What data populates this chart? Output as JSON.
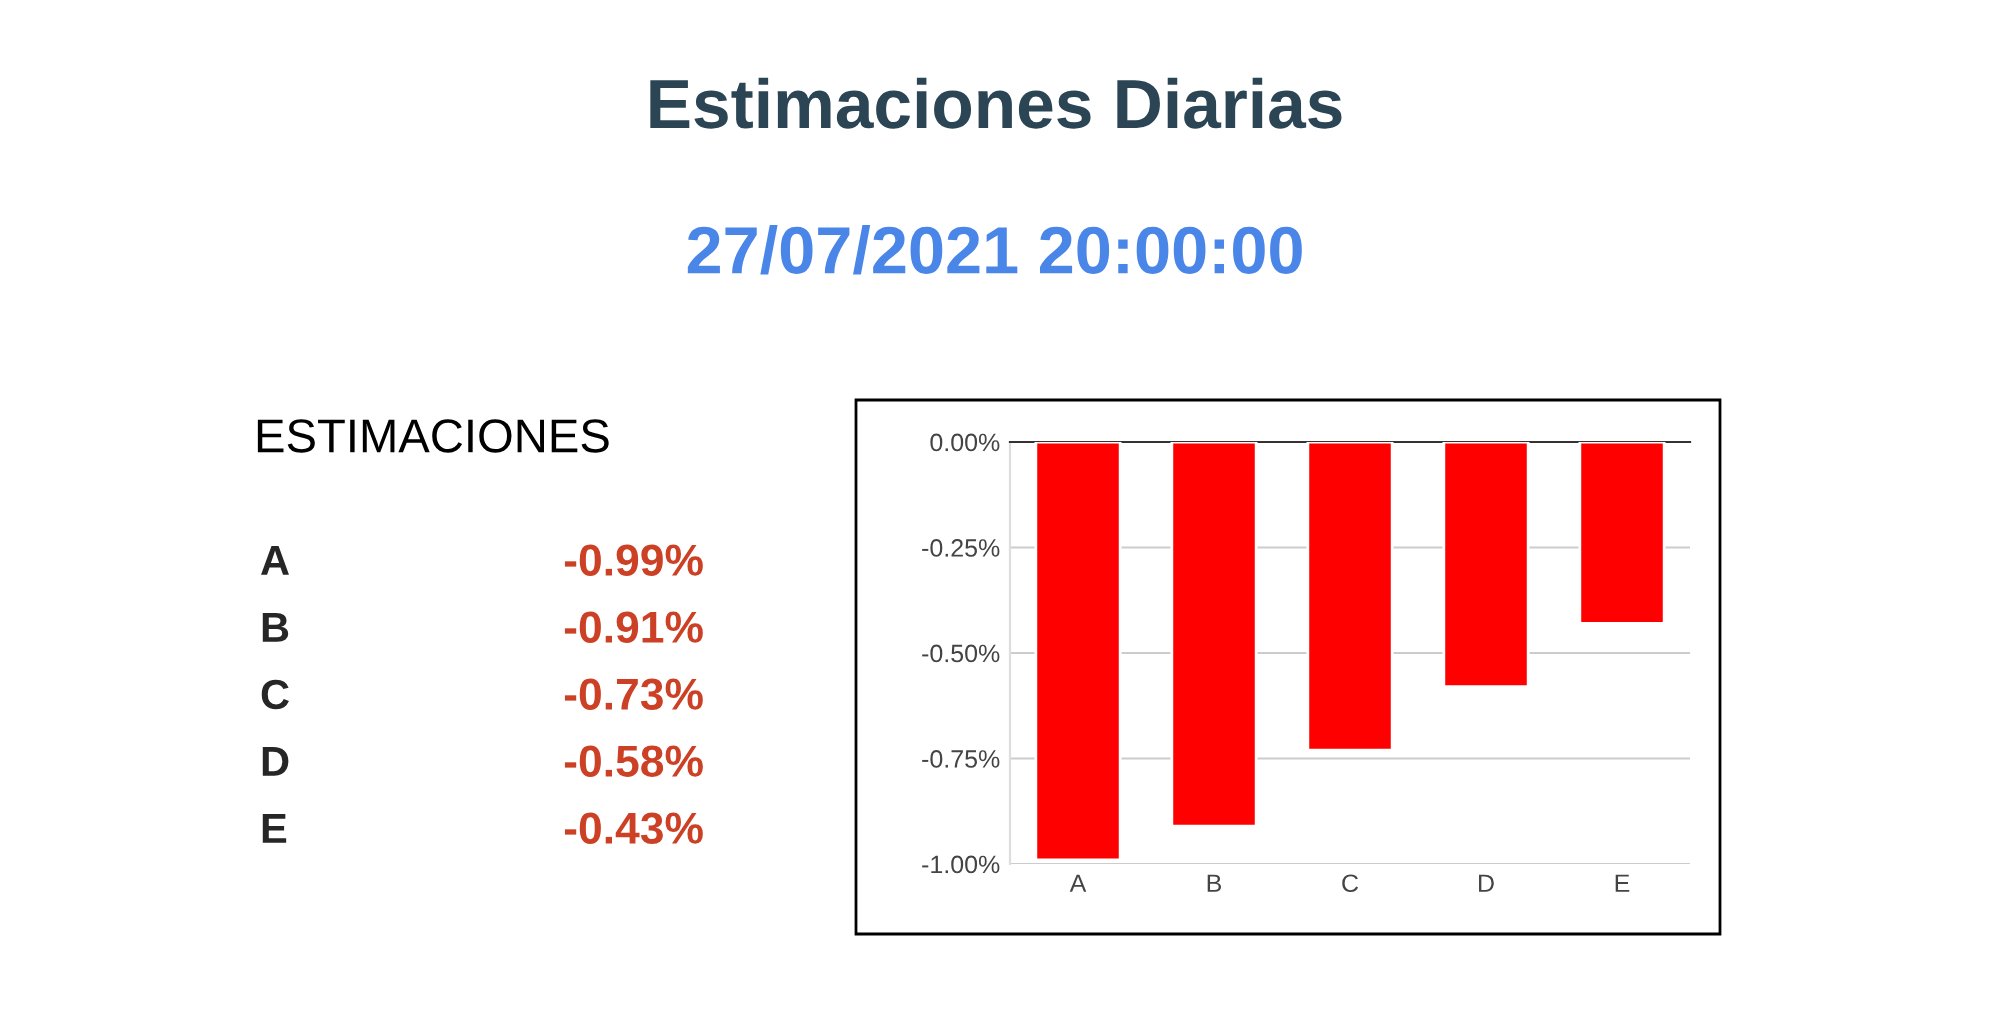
{
  "chart_data": [
    {
      "type": "other",
      "title": "Estimaciones Diarias",
      "subtitle": "27/07/2021 20:00:00",
      "annotations": [
        "ESTIMACIONES",
        "A",
        "-0.99%",
        "B",
        "-0.91%",
        "C",
        "-0.73%",
        "D",
        "-0.58%",
        "E",
        "-0.43%"
      ]
    },
    {
      "type": "bar",
      "categories": [
        "A",
        "B",
        "C",
        "D",
        "E"
      ],
      "values": [
        -0.99,
        -0.91,
        -0.73,
        -0.58,
        -0.43
      ],
      "color": "#ff0000",
      "ylim": [
        -1.0,
        0.0
      ],
      "yticks": [
        {
          "value": -1.0,
          "label": "-1.00%"
        },
        {
          "value": -0.75,
          "label": "-0.75%"
        },
        {
          "value": -0.5,
          "label": "-0.50%"
        },
        {
          "value": -0.25,
          "label": "-0.25%"
        },
        {
          "value": 0.0,
          "label": "0.00%"
        }
      ],
      "grid": "y"
    }
  ]
}
